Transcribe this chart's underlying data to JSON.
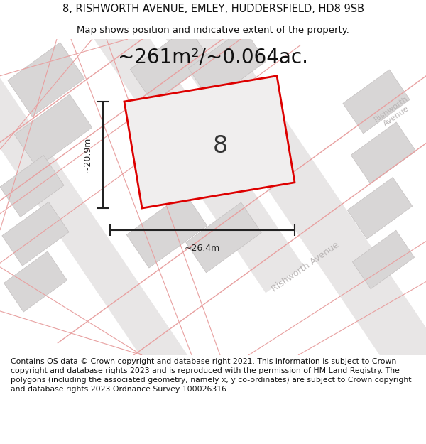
{
  "title_line1": "8, RISHWORTH AVENUE, EMLEY, HUDDERSFIELD, HD8 9SB",
  "title_line2": "Map shows position and indicative extent of the property.",
  "area_label": "~261m²/~0.064ac.",
  "plot_number": "8",
  "dim_width": "~26.4m",
  "dim_height": "~20.9m",
  "footer_text": "Contains OS data © Crown copyright and database right 2021. This information is subject to Crown copyright and database rights 2023 and is reproduced with the permission of HM Land Registry. The polygons (including the associated geometry, namely x, y co-ordinates) are subject to Crown copyright and database rights 2023 Ordnance Survey 100026316.",
  "bg_color": "#ffffff",
  "map_bg": "#f9f8f8",
  "plot_outline_color": "#dd0000",
  "building_color": "#d8d6d6",
  "building_edge_color": "#c4c0c0",
  "road_fill_color": "#e8e6e6",
  "road_line_color": "#e8a0a0",
  "street_label_color": "#b8b4b4",
  "dim_color": "#222222",
  "title_fontsize": 10.5,
  "subtitle_fontsize": 9.5,
  "area_fontsize": 20,
  "plot_num_fontsize": 24,
  "dim_fontsize": 9,
  "street_fontsize": 9,
  "footer_fontsize": 7.8
}
